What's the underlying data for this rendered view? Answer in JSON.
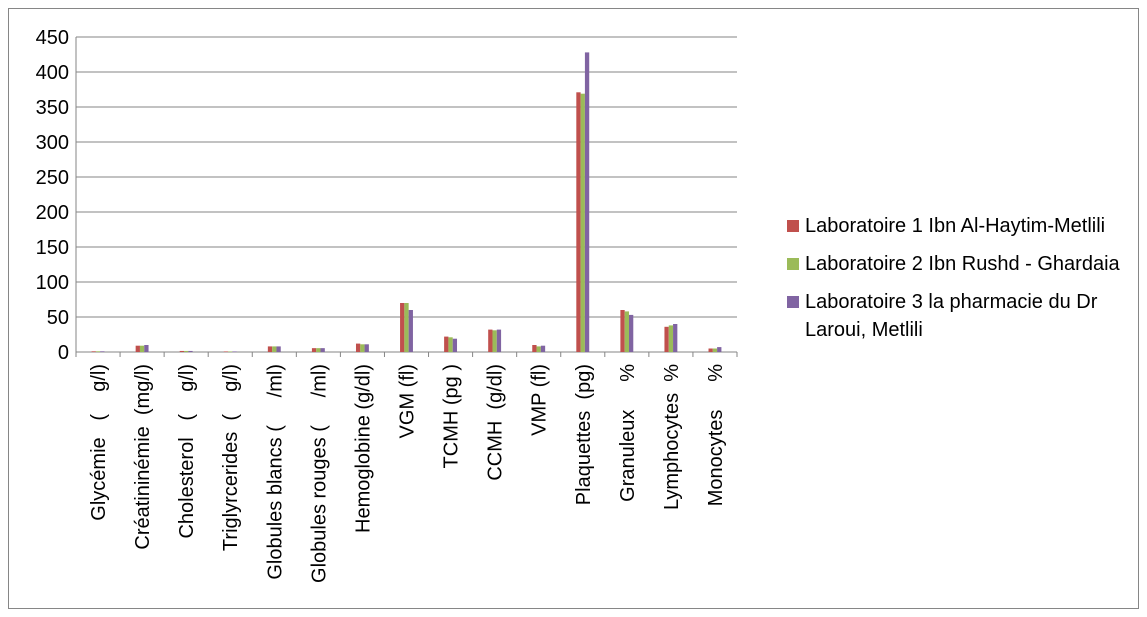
{
  "chart_data": {
    "type": "bar",
    "categories": [
      "Glycémie   (    g/l)",
      "Créatininémie  (mg/l)",
      "Cholesterol   (    g/l)",
      "Triglyrcerides  (    g/l)",
      "Globules blancs (     /ml)",
      "Globules rouges (     /ml)",
      "Hemoglobine (g/dl)",
      "VGM (fl)",
      "TCMH (pg )",
      "CCMH  (g/dl)",
      "VMP (fl)",
      "Plaquettes  (pg)",
      "Granuleux     %",
      "Lymphocytes  %",
      "Monocytes     %"
    ],
    "series": [
      {
        "name": "Laboratoire 1 Ibn Al-Haytim-Metlili",
        "color": "#c0504d",
        "values": [
          1,
          9,
          1.5,
          0.8,
          8,
          5.5,
          12,
          70,
          22,
          32,
          10,
          371,
          60,
          36,
          5
        ]
      },
      {
        "name": "Laboratoire  2 Ibn Rushd - Ghardaia",
        "color": "#9bbb59",
        "values": [
          1,
          9,
          1.5,
          0.8,
          8,
          5.5,
          11,
          70,
          21,
          31,
          8,
          369,
          58,
          38,
          5
        ]
      },
      {
        "name": "Laboratoire 3 la pharmacie du Dr Laroui, Metlili",
        "color": "#8064a2",
        "values": [
          1,
          10,
          1.5,
          0.8,
          8,
          5.5,
          11,
          60,
          19,
          32,
          9,
          428,
          53,
          40,
          7
        ]
      }
    ],
    "ylim": [
      0,
      450
    ],
    "yticks": [
      0,
      50,
      100,
      150,
      200,
      250,
      300,
      350,
      400,
      450
    ],
    "grid": true,
    "legend_position": "right",
    "title": "",
    "xlabel": "",
    "ylabel": ""
  }
}
